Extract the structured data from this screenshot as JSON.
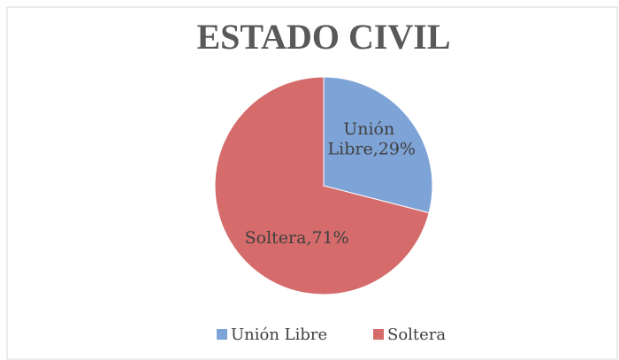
{
  "chart_data": {
    "type": "pie",
    "title": "ESTADO CIVIL",
    "categories": [
      "Unión Libre",
      "Soltera"
    ],
    "values": [
      29,
      71
    ],
    "value_labels": [
      "Unión Libre,29%",
      "Soltera,71%"
    ],
    "colors": [
      "#7ea3d6",
      "#d56b6b"
    ],
    "legend": "bottom"
  }
}
